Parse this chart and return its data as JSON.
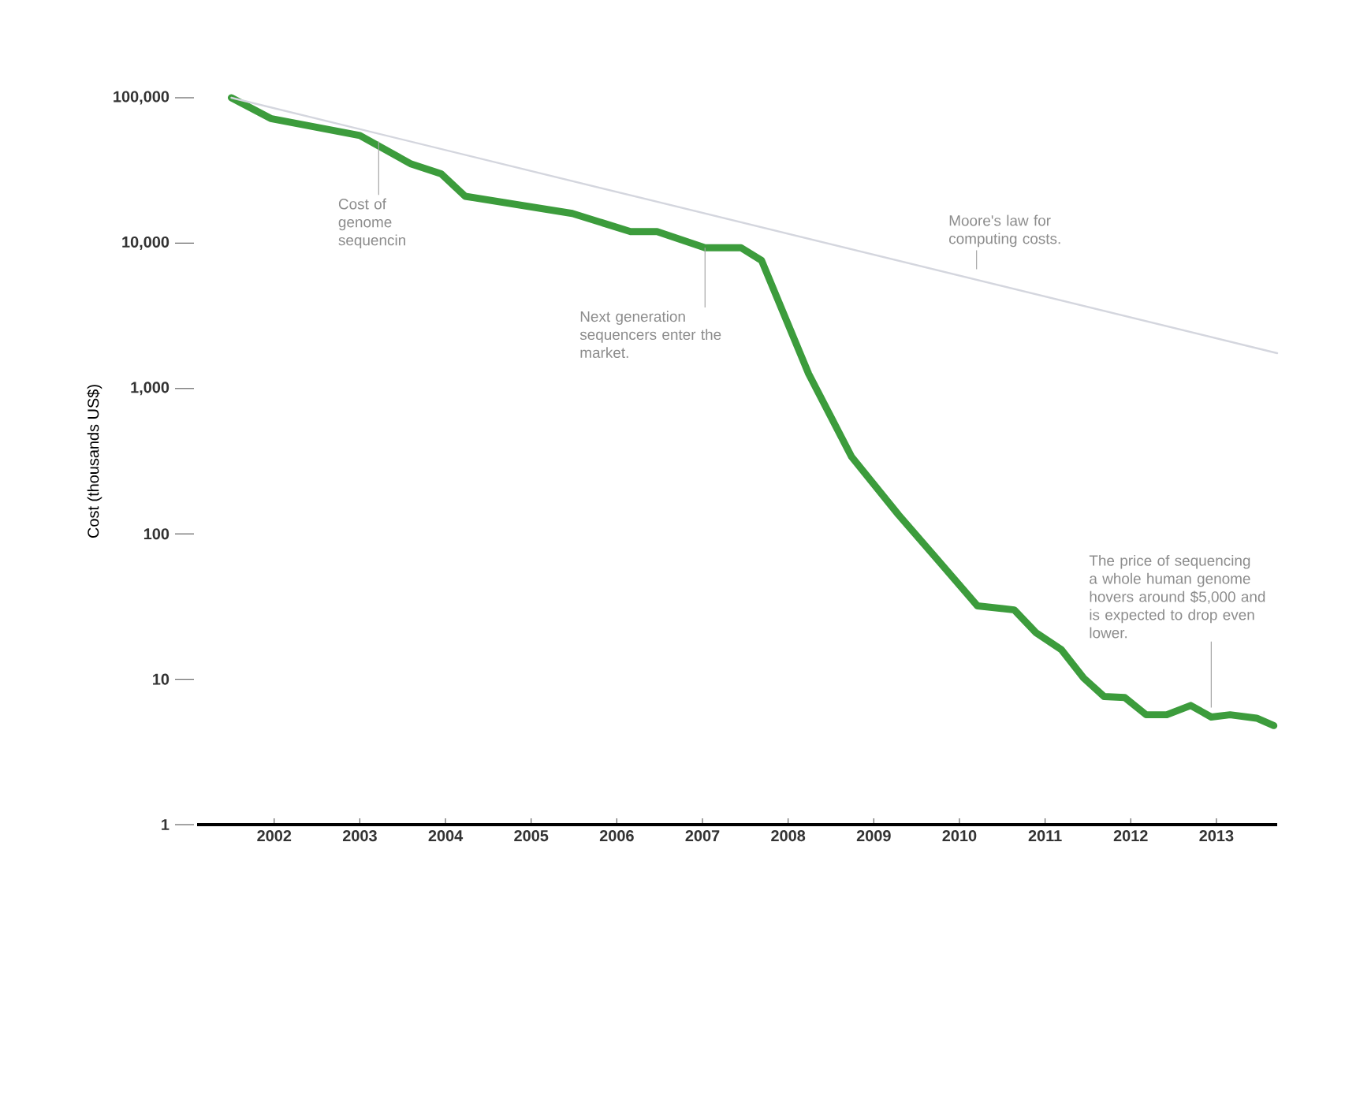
{
  "chart_data": {
    "type": "line",
    "ylabel": "Cost (thousands US$)",
    "log": "y",
    "xlim": [
      2001.1,
      2013.71
    ],
    "ylim": [
      1,
      100000
    ],
    "xticks": [
      2002,
      2003,
      2004,
      2005,
      2006,
      2007,
      2008,
      2009,
      2010,
      2011,
      2012,
      2013
    ],
    "yticks": [
      1,
      10,
      100,
      {
        "value": 1000,
        "label": "1,000"
      },
      {
        "value": 10000,
        "label": "10,000"
      },
      {
        "value": 100000,
        "label": "100,000"
      }
    ],
    "series": [
      {
        "color": "#3c9c3c",
        "x": [
          2001.5,
          2001.96,
          2003.0,
          2003.6,
          2003.95,
          2004.23,
          2005.48,
          2006.16,
          2006.47,
          2007.03,
          2007.45,
          2007.69,
          2008.24,
          2008.74,
          2009.29,
          2009.72,
          2010.21,
          2010.64,
          2010.89,
          2011.19,
          2011.45,
          2011.69,
          2011.93,
          2012.18,
          2012.42,
          2012.7,
          2012.94,
          2013.16,
          2013.47,
          2013.67
        ],
        "values": [
          100000,
          72000,
          55000,
          35000,
          30000,
          21000,
          16000,
          12000,
          12000,
          9300,
          9300,
          7600,
          1260,
          340,
          135,
          69,
          32,
          30,
          21,
          16,
          10.2,
          7.6,
          7.5,
          5.7,
          5.7,
          6.6,
          5.5,
          5.7,
          5.4,
          4.8
        ]
      },
      {
        "color": "#d4d6de",
        "x": [
          2001.5,
          2013.71
        ],
        "values": [
          100000,
          1750
        ]
      }
    ],
    "annotations": [
      {
        "text": "Cost of genome sequencin",
        "x": 2003.22,
        "y": 50000
      },
      {
        "text": "Moore's law for computing costs.",
        "x": 2010.2,
        "y": 5700
      },
      {
        "text": "Next generation sequencers enter the market.",
        "x": 2007.03,
        "y": 9300
      },
      {
        "text": "The price of sequencing a whole human genome hovers around $5,000 and is expected to drop even lower.",
        "x": 2012.94,
        "y": 5.5
      }
    ],
    "grid": false
  }
}
